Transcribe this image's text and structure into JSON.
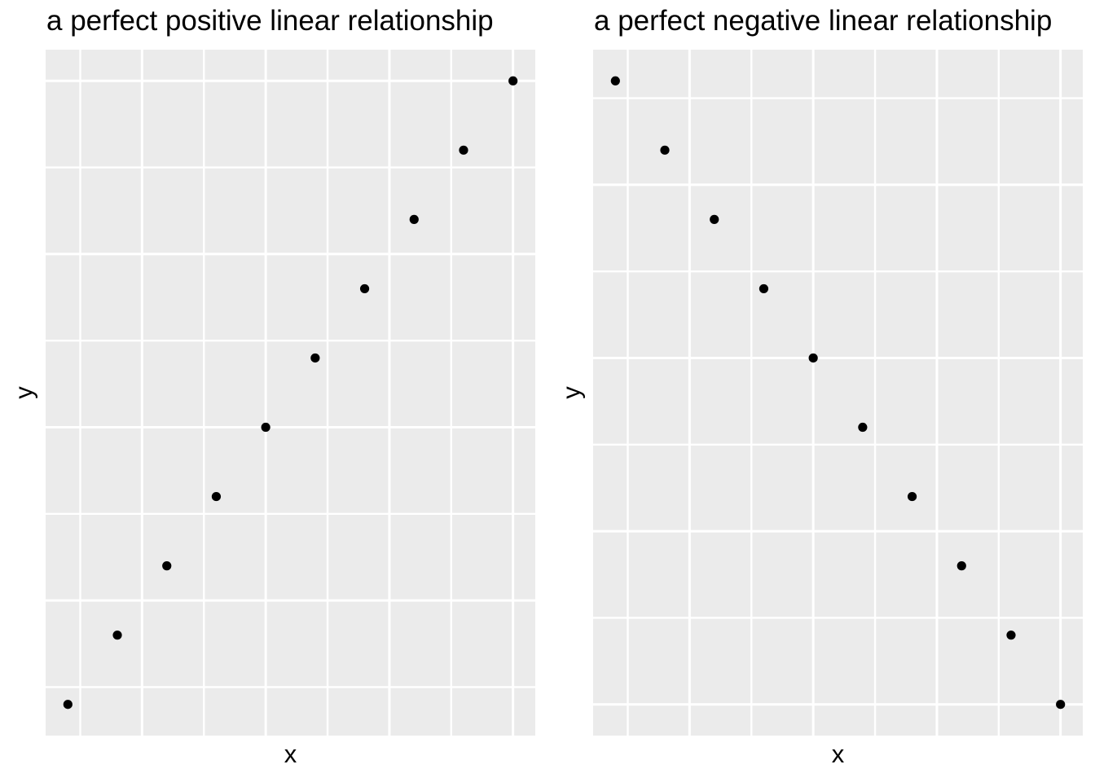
{
  "figure": {
    "background": "#FFFFFF",
    "text_color": "#000000"
  },
  "chart_data": [
    {
      "type": "scatter",
      "title": "a perfect positive linear relationship",
      "xlabel": "x",
      "ylabel": "y",
      "x": [
        1,
        2,
        3,
        4,
        5,
        6,
        7,
        8,
        9,
        10
      ],
      "y": [
        1,
        2,
        3,
        4,
        5,
        6,
        7,
        8,
        9,
        10
      ],
      "xlim": [
        0.55,
        10.45
      ],
      "ylim": [
        0.55,
        10.45
      ],
      "x_major_breaks": [
        2.5,
        5,
        7.5,
        10
      ],
      "x_minor_breaks": [
        1.25,
        3.75,
        6.25,
        8.75
      ],
      "y_major_breaks": [
        2.5,
        5,
        7.5,
        10
      ],
      "y_minor_breaks": [
        1.25,
        3.75,
        6.25,
        8.75
      ],
      "grid": "on",
      "legend": "none",
      "tick_labels_visible": false,
      "panel_bg": "#EBEBEB",
      "grid_color": "#FFFFFF",
      "point_color": "#000000"
    },
    {
      "type": "scatter",
      "title": "a perfect negative linear relationship",
      "xlabel": "x",
      "ylabel": "y",
      "x": [
        1,
        2,
        3,
        4,
        5,
        6,
        7,
        8,
        9,
        10
      ],
      "y": [
        -1,
        -2,
        -3,
        -4,
        -5,
        -6,
        -7,
        -8,
        -9,
        -10
      ],
      "xlim": [
        0.55,
        10.45
      ],
      "ylim": [
        -10.45,
        -0.55
      ],
      "x_major_breaks": [
        2.5,
        5,
        7.5,
        10
      ],
      "x_minor_breaks": [
        1.25,
        3.75,
        6.25,
        8.75
      ],
      "y_major_breaks": [
        -10,
        -7.5,
        -5,
        -2.5
      ],
      "y_minor_breaks": [
        -8.75,
        -6.25,
        -3.75,
        -1.25
      ],
      "grid": "on",
      "legend": "none",
      "tick_labels_visible": false,
      "panel_bg": "#EBEBEB",
      "grid_color": "#FFFFFF",
      "point_color": "#000000"
    }
  ]
}
